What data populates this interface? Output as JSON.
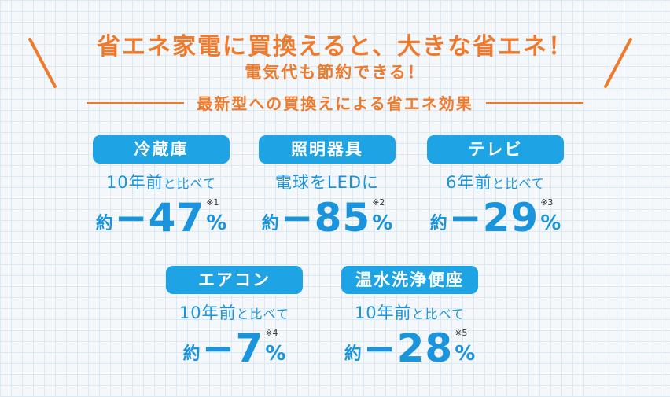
{
  "header": {
    "headline": "省エネ家電に買換えると、大きな省エネ！",
    "subline": "電気代も節約できる！",
    "section_title": "最新型への買換えによる省エネ効果"
  },
  "cards": [
    {
      "name": "冷蔵庫",
      "desc_main": "10年前",
      "desc_small": "と比べて",
      "approx": "約",
      "value": "−47",
      "note": "※1",
      "unit": "%"
    },
    {
      "name": "照明器具",
      "desc_main": "電球をLEDに",
      "desc_small": "",
      "approx": "約",
      "value": "−85",
      "note": "※2",
      "unit": "%"
    },
    {
      "name": "テレビ",
      "desc_main": "6年前",
      "desc_small": "と比べて",
      "approx": "約",
      "value": "−29",
      "note": "※3",
      "unit": "%"
    },
    {
      "name": "エアコン",
      "desc_main": "10年前",
      "desc_small": "と比べて",
      "approx": "約",
      "value": "−7",
      "note": "※4",
      "unit": "%"
    },
    {
      "name": "温水洗浄便座",
      "desc_main": "10年前",
      "desc_small": "と比べて",
      "approx": "約",
      "value": "−28",
      "note": "※5",
      "unit": "%"
    }
  ],
  "colors": {
    "accent_orange": "#ef7a2c",
    "accent_blue": "#1ea3e4",
    "text_blue": "#1a94dd"
  }
}
